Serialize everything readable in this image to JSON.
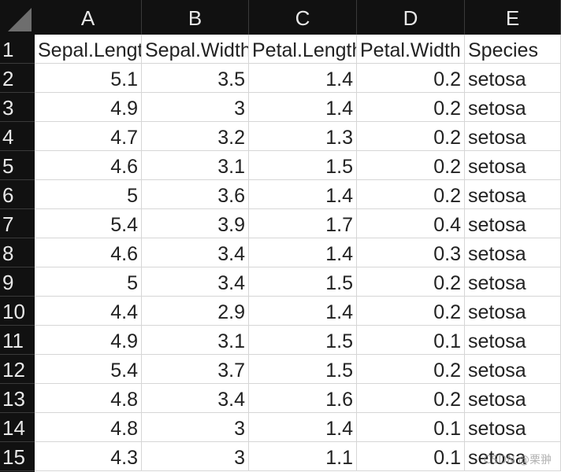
{
  "columns": [
    "A",
    "B",
    "C",
    "D",
    "E"
  ],
  "row_numbers": [
    "1",
    "2",
    "3",
    "4",
    "5",
    "6",
    "7",
    "8",
    "9",
    "10",
    "11",
    "12",
    "13",
    "14",
    "15"
  ],
  "header_row": [
    "Sepal.Length",
    "Sepal.Width",
    "Petal.Length",
    "Petal.Width",
    "Species"
  ],
  "rows": [
    [
      "5.1",
      "3.5",
      "1.4",
      "0.2",
      "setosa"
    ],
    [
      "4.9",
      "3",
      "1.4",
      "0.2",
      "setosa"
    ],
    [
      "4.7",
      "3.2",
      "1.3",
      "0.2",
      "setosa"
    ],
    [
      "4.6",
      "3.1",
      "1.5",
      "0.2",
      "setosa"
    ],
    [
      "5",
      "3.6",
      "1.4",
      "0.2",
      "setosa"
    ],
    [
      "5.4",
      "3.9",
      "1.7",
      "0.4",
      "setosa"
    ],
    [
      "4.6",
      "3.4",
      "1.4",
      "0.3",
      "setosa"
    ],
    [
      "5",
      "3.4",
      "1.5",
      "0.2",
      "setosa"
    ],
    [
      "4.4",
      "2.9",
      "1.4",
      "0.2",
      "setosa"
    ],
    [
      "4.9",
      "3.1",
      "1.5",
      "0.1",
      "setosa"
    ],
    [
      "5.4",
      "3.7",
      "1.5",
      "0.2",
      "setosa"
    ],
    [
      "4.8",
      "3.4",
      "1.6",
      "0.2",
      "setosa"
    ],
    [
      "4.8",
      "3",
      "1.4",
      "0.1",
      "setosa"
    ],
    [
      "4.3",
      "3",
      "1.1",
      "0.1",
      "setosa"
    ]
  ],
  "watermark": "CSDN @栗翀"
}
